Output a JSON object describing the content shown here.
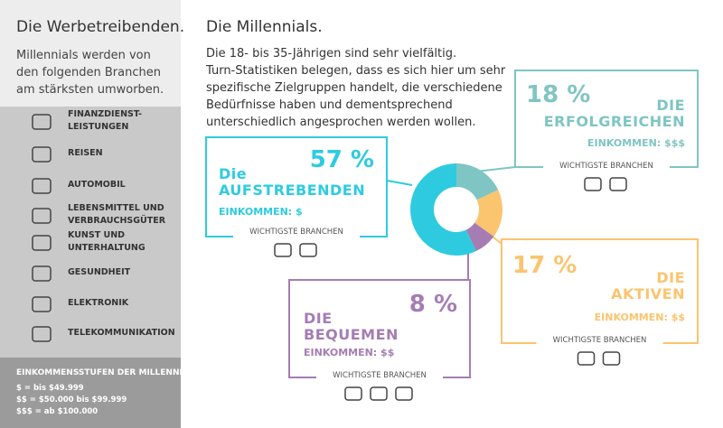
{
  "sidebar": {
    "title": "Die Werbetreibenden.",
    "intro": [
      "Millennials werden von",
      "den folgenden Branchen",
      "am stärksten umworben."
    ],
    "industries": [
      [
        "FINANZDIENST-",
        "LEISTUNGEN"
      ],
      [
        "REISEN"
      ],
      [
        "AUTOMOBIL"
      ],
      [
        "LEBENSMITTEL UND",
        "VERBRAUCHSGÜTER"
      ],
      [
        "KUNST UND",
        "UNTERHALTUNG"
      ],
      [
        "GESUNDHEIT"
      ],
      [
        "ELEKTRONIK"
      ],
      [
        "TELEKOMMUNIKATION"
      ]
    ],
    "income_title": "EINKOMMENSSTUFEN DER MILLENNIALS",
    "income_levels": [
      "$ = bis $49.999",
      "$$ = $50.000 bis $99.999",
      "$$$ = ab $100.000"
    ]
  },
  "main": {
    "title": "Die Millennials.",
    "paragraph": [
      "Die 18- bis 35-Jährigen sind sehr vielfältig.",
      "Turn-Statistiken belegen, dass es sich hier um sehr",
      "spezifische Zielgruppen handelt, die verschiedene",
      "Bedürfnisse haben und dementsprechend",
      "unterschiedlich angesprochen werden wollen."
    ]
  },
  "chart_data": {
    "type": "pie",
    "donut": true,
    "categories": [
      "DIE ERFOLGREICHEN",
      "DIE AKTIVEN",
      "DIE BEQUEMEN",
      "Die AUFSTREBENDEN"
    ],
    "values": [
      18,
      17,
      8,
      57
    ],
    "value_labels": [
      "18 %",
      "17 %",
      "8 %",
      "57 %"
    ],
    "colors": [
      "#7fc5c3",
      "#fbc46e",
      "#a57db3",
      "#2ecbe0"
    ],
    "incomes": [
      "EINKOMMEN: $$$",
      "EINKOMMEN: $$",
      "EINKOMMEN: $$",
      "EINKOMMEN: $"
    ],
    "branch_labels": [
      "WICHTIGSTE BRANCHEN",
      "WICHTIGSTE BRANCHEN",
      "WICHTIGSTE BRANCHEN",
      "WICHTIGSTE BRANCHEN"
    ]
  }
}
